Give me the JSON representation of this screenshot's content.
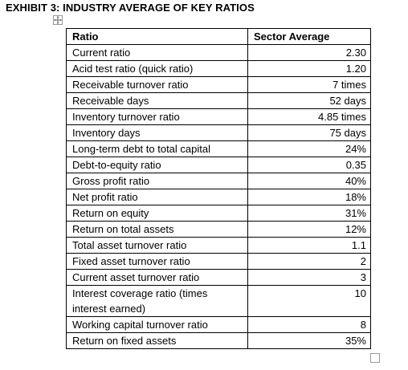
{
  "exhibit_title": "EXHIBIT 3: INDUSTRY AVERAGE OF KEY RATIOS",
  "table": {
    "headers": {
      "ratio": "Ratio",
      "sector_average": "Sector Average"
    },
    "rows": [
      {
        "ratio": "Current ratio",
        "value": "2.30"
      },
      {
        "ratio": "Acid test ratio (quick ratio)",
        "value": "1.20"
      },
      {
        "ratio": "Receivable turnover ratio",
        "value": "7 times"
      },
      {
        "ratio": "Receivable days",
        "value": "52 days"
      },
      {
        "ratio": "Inventory turnover ratio",
        "value": "4.85 times"
      },
      {
        "ratio": "Inventory days",
        "value": "75 days"
      },
      {
        "ratio": "Long-term debt to total capital",
        "value": "24%"
      },
      {
        "ratio": "Debt-to-equity ratio",
        "value": "0.35"
      },
      {
        "ratio": "Gross profit ratio",
        "value": "40%"
      },
      {
        "ratio": "Net profit ratio",
        "value": "18%"
      },
      {
        "ratio": "Return on equity",
        "value": "31%"
      },
      {
        "ratio": "Return on total assets",
        "value": "12%"
      },
      {
        "ratio": "Total asset turnover ratio",
        "value": "1.1"
      },
      {
        "ratio": "Fixed asset turnover ratio",
        "value": "2"
      },
      {
        "ratio": "Current asset turnover ratio",
        "value": "3"
      },
      {
        "ratio": "Interest coverage ratio (times interest earned)",
        "value": "10"
      },
      {
        "ratio": "Working capital turnover ratio",
        "value": "8"
      },
      {
        "ratio": "Return on fixed assets",
        "value": "35%"
      }
    ]
  },
  "icons": {
    "move_handle": "move-handle-icon",
    "resize_handle": "resize-handle-icon"
  }
}
